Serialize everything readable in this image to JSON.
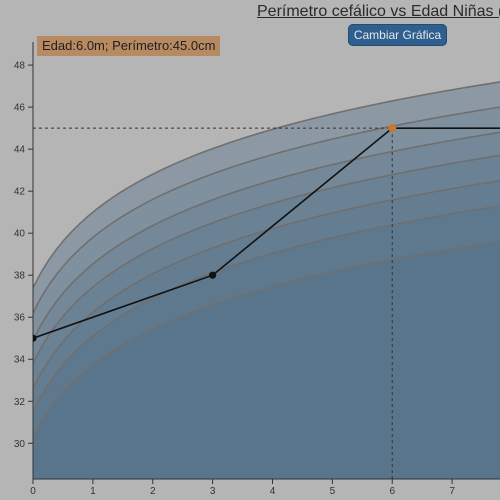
{
  "header": {
    "title": "Perímetro cefálico vs Edad Niñas (C",
    "button_label": "Cambiar Gráfica"
  },
  "tooltip": {
    "text": "Edad:6.0m; Perímetro:45.0cm"
  },
  "colors": {
    "background": "#b5b5b5",
    "band_fill": "#3f6385",
    "percentile_line": "#6f6f6f",
    "data_line": "#111111",
    "data_point": "#111111",
    "highlight_point": "#c9782c",
    "tooltip_bg": "#b88a62",
    "button_bg": "#2f5f8e"
  },
  "chart_data": {
    "type": "line",
    "title": "Perímetro cefálico vs Edad Niñas (C",
    "xlabel": "",
    "ylabel": "",
    "xlim": [
      0,
      7.8
    ],
    "ylim": [
      28.3,
      49.1
    ],
    "x_ticks": [
      0,
      1,
      2,
      3,
      4,
      5,
      6,
      7
    ],
    "y_ticks": [
      30,
      32,
      34,
      36,
      38,
      40,
      42,
      44,
      46,
      48
    ],
    "percentile_curves": [
      {
        "values": [
          {
            "x": 0,
            "y": 37.4
          },
          {
            "x": 7.8,
            "y": 47.2
          }
        ]
      },
      {
        "values": [
          {
            "x": 0,
            "y": 36.2
          },
          {
            "x": 7.8,
            "y": 46.0
          }
        ]
      },
      {
        "values": [
          {
            "x": 0,
            "y": 34.9
          },
          {
            "x": 7.8,
            "y": 44.8
          }
        ]
      },
      {
        "values": [
          {
            "x": 0,
            "y": 33.8
          },
          {
            "x": 7.8,
            "y": 43.7
          }
        ]
      },
      {
        "values": [
          {
            "x": 0,
            "y": 32.6
          },
          {
            "x": 7.8,
            "y": 42.5
          }
        ]
      },
      {
        "values": [
          {
            "x": 0,
            "y": 31.5
          },
          {
            "x": 7.8,
            "y": 41.3
          }
        ]
      },
      {
        "values": [
          {
            "x": 0,
            "y": 30.3
          },
          {
            "x": 7.8,
            "y": 39.6
          }
        ]
      }
    ],
    "series": [
      {
        "values": [
          {
            "x": 0,
            "y": 35.0
          },
          {
            "x": 3,
            "y": 38.0
          },
          {
            "x": 6,
            "y": 45.0
          },
          {
            "x": 7.8,
            "y": 45.0
          }
        ]
      }
    ],
    "highlight": {
      "x": 6,
      "y": 45.0
    },
    "grid": false,
    "legend": "none"
  }
}
